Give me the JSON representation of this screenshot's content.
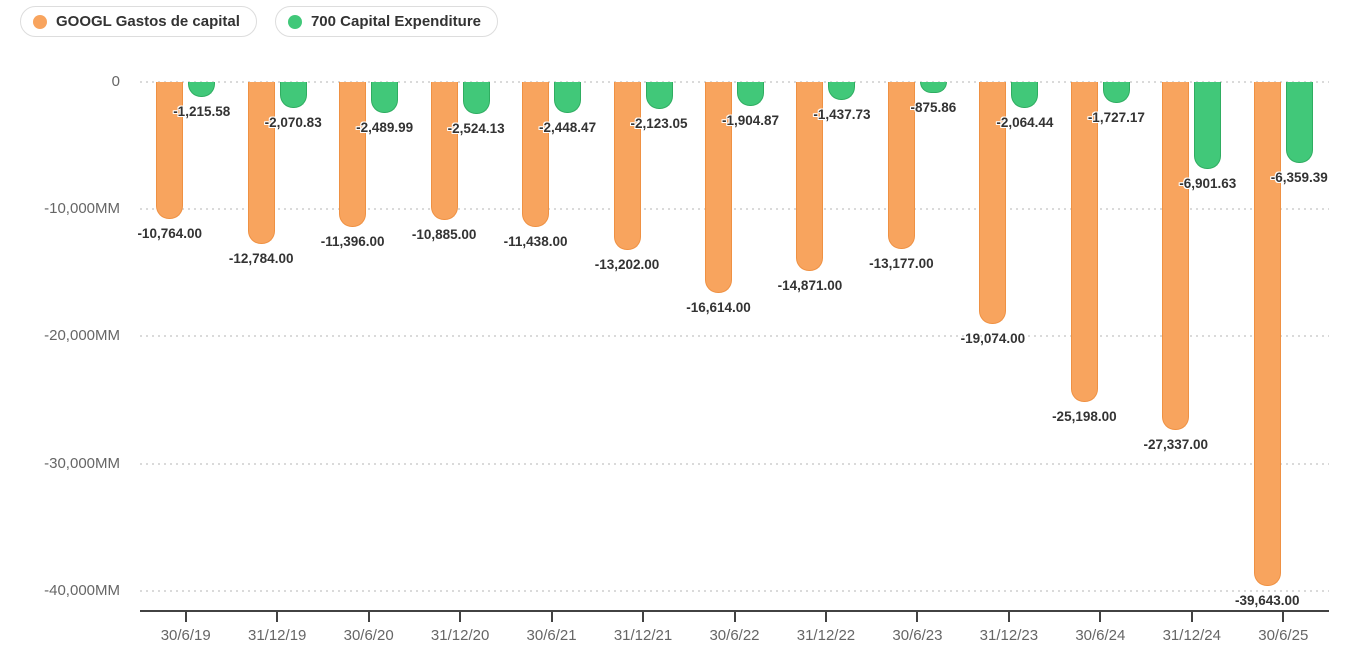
{
  "legend": [
    {
      "label": "GOOGL Gastos de capital",
      "color": "#f8a45e"
    },
    {
      "label": "700 Capital Expenditure",
      "color": "#41c879"
    }
  ],
  "chart_data": {
    "type": "bar",
    "title": "",
    "xlabel": "",
    "ylabel": "",
    "ylim": [
      -40000,
      0
    ],
    "grid": "horizontal-dotted",
    "legend_position": "top-left",
    "categories": [
      "30/6/19",
      "31/12/19",
      "30/6/20",
      "31/12/20",
      "30/6/21",
      "31/12/21",
      "30/6/22",
      "31/12/22",
      "30/6/23",
      "31/12/23",
      "30/6/24",
      "31/12/24",
      "30/6/25"
    ],
    "yticks": [
      {
        "value": 0,
        "label": "0"
      },
      {
        "value": -10000,
        "label": "-10,000MM"
      },
      {
        "value": -20000,
        "label": "-20,000MM"
      },
      {
        "value": -30000,
        "label": "-30,000MM"
      },
      {
        "value": -40000,
        "label": "-40,000MM"
      }
    ],
    "series": [
      {
        "name": "GOOGL Gastos de capital",
        "color": "#f8a45e",
        "border_color": "#ef9143",
        "values": [
          -10764.0,
          -12784.0,
          -11396.0,
          -10885.0,
          -11438.0,
          -13202.0,
          -16614.0,
          -14871.0,
          -13177.0,
          -19074.0,
          -25198.0,
          -27337.0,
          -39643.0
        ],
        "labels": [
          "-10,764.00",
          "-12,784.00",
          "-11,396.00",
          "-10,885.00",
          "-11,438.00",
          "-13,202.00",
          "-16,614.00",
          "-14,871.00",
          "-13,177.00",
          "-19,074.00",
          "-25,198.00",
          "-27,337.00",
          "-39,643.00"
        ]
      },
      {
        "name": "700 Capital Expenditure",
        "color": "#41c879",
        "border_color": "#2fad61",
        "values": [
          -1215.58,
          -2070.83,
          -2489.99,
          -2524.13,
          -2448.47,
          -2123.05,
          -1904.87,
          -1437.73,
          -875.86,
          -2064.44,
          -1727.17,
          -6901.63,
          -6359.39
        ],
        "labels": [
          "-1,215.58",
          "-2,070.83",
          "-2,489.99",
          "-2,524.13",
          "-2,448.47",
          "-2,123.05",
          "-1,904.87",
          "-1,437.73",
          "-875.86",
          "-2,064.44",
          "-1,727.17",
          "-6,901.63",
          "-6,359.39"
        ]
      }
    ]
  }
}
